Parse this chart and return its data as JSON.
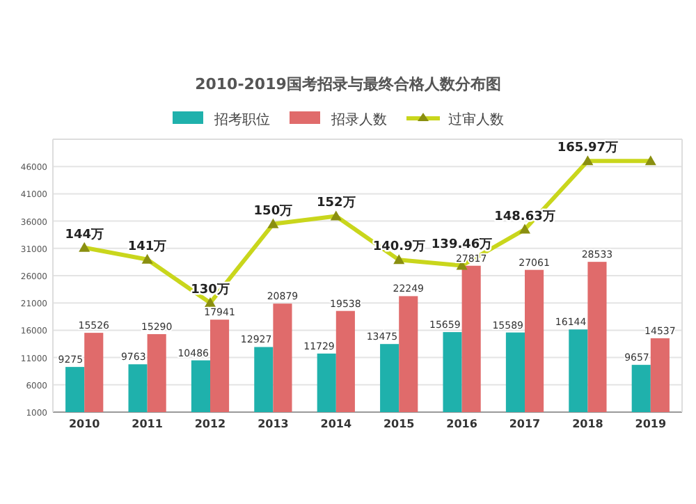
{
  "chart_data": {
    "type": "bar",
    "title": "2010-2019国考招录与最终合格人数分布图",
    "categories": [
      "2010",
      "2011",
      "2012",
      "2013",
      "2014",
      "2015",
      "2016",
      "2017",
      "2018",
      "2019"
    ],
    "series": [
      {
        "name": "招考职位",
        "color": "#1fb1ac",
        "values": [
          9275,
          9763,
          10486,
          12927,
          11729,
          13475,
          15659,
          15589,
          16144,
          9657
        ]
      },
      {
        "name": "招录人数",
        "color": "#e06b6b",
        "values": [
          15526,
          15290,
          17941,
          20879,
          19538,
          22249,
          27817,
          27061,
          28533,
          14537
        ]
      },
      {
        "name": "过审人数",
        "type": "line",
        "axis": "y2",
        "color": "#c9d61c",
        "marker": "triangle",
        "values": [
          144,
          141,
          130,
          150,
          152,
          140.9,
          139.46,
          148.63,
          165.97,
          165.97
        ],
        "value_labels": [
          "144万",
          "141万",
          "130万",
          "150万",
          "152万",
          "140.9万",
          "139.46万",
          "148.63万",
          "165.97万",
          null
        ]
      }
    ],
    "data_labels": true,
    "ylim": [
      1000,
      51000
    ],
    "yticks": [
      1000,
      6000,
      11000,
      16000,
      21000,
      26000,
      31000,
      36000,
      41000,
      46000
    ],
    "y2lim": [
      102.3,
      171.5
    ],
    "grid": "y",
    "legend": "top"
  }
}
